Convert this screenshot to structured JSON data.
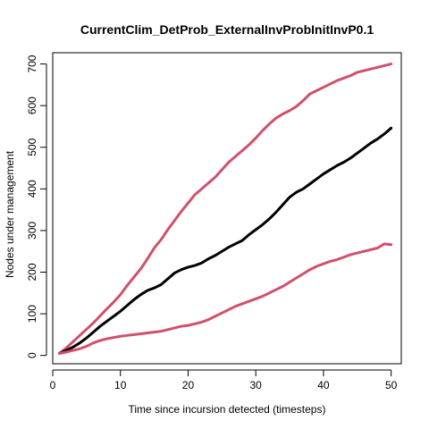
{
  "chart_data": {
    "type": "line",
    "title": "CurrentClim_DetProb_ExternalInvProbInitInvP0.1",
    "xlabel": "Time since incursion detected (timesteps)",
    "ylabel": "Nodes under management",
    "xlim": [
      0,
      51.5
    ],
    "ylim": [
      -20,
      727
    ],
    "xticks": [
      0,
      10,
      20,
      30,
      40,
      50
    ],
    "yticks": [
      0,
      100,
      200,
      300,
      400,
      500,
      600,
      700
    ],
    "grid": false,
    "legend": "none",
    "x": [
      1,
      2,
      3,
      4,
      5,
      6,
      7,
      8,
      9,
      10,
      11,
      12,
      13,
      14,
      15,
      16,
      17,
      18,
      19,
      20,
      21,
      22,
      23,
      24,
      25,
      26,
      27,
      28,
      29,
      30,
      31,
      32,
      33,
      34,
      35,
      36,
      37,
      38,
      39,
      40,
      41,
      42,
      43,
      44,
      45,
      46,
      47,
      48,
      49,
      50
    ],
    "series": [
      {
        "color": "#d1506b",
        "width": 3,
        "values": [
          5,
          18,
          33,
          48,
          63,
          78,
          95,
          112,
          128,
          146,
          168,
          188,
          208,
          232,
          258,
          278,
          302,
          324,
          346,
          366,
          386,
          400,
          414,
          428,
          446,
          464,
          478,
          492,
          506,
          522,
          540,
          556,
          570,
          580,
          588,
          598,
          612,
          628,
          636,
          644,
          652,
          660,
          666,
          672,
          680,
          684,
          688,
          692,
          696,
          700
        ]
      },
      {
        "color": "#000000",
        "width": 3,
        "values": [
          5,
          12,
          20,
          30,
          42,
          56,
          70,
          82,
          94,
          106,
          120,
          134,
          146,
          156,
          162,
          170,
          184,
          198,
          206,
          212,
          216,
          222,
          232,
          240,
          250,
          260,
          268,
          276,
          290,
          302,
          314,
          328,
          344,
          362,
          380,
          392,
          400,
          412,
          424,
          436,
          446,
          456,
          464,
          474,
          486,
          498,
          510,
          520,
          532,
          546
        ]
      },
      {
        "color": "#d1506b",
        "width": 3,
        "values": [
          5,
          8,
          12,
          16,
          22,
          30,
          36,
          40,
          43,
          46,
          48,
          50,
          52,
          54,
          56,
          58,
          62,
          66,
          70,
          72,
          76,
          80,
          86,
          94,
          102,
          110,
          118,
          124,
          130,
          136,
          142,
          150,
          158,
          166,
          176,
          186,
          196,
          206,
          214,
          220,
          226,
          230,
          236,
          242,
          246,
          250,
          254,
          258,
          268,
          266
        ]
      }
    ]
  }
}
